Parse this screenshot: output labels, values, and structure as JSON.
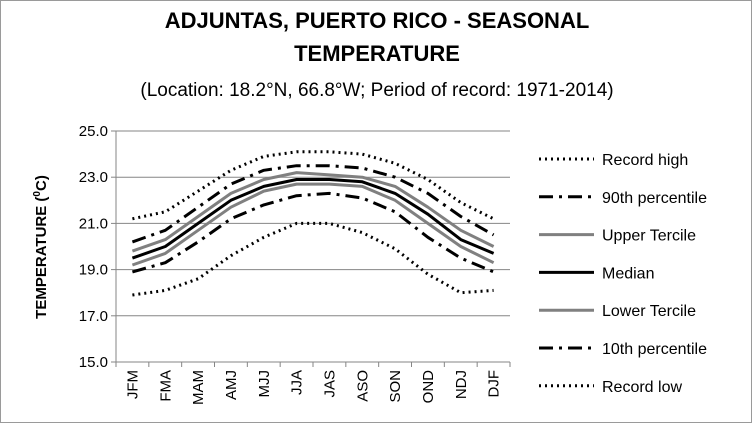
{
  "chart_data": {
    "type": "line",
    "title_line1": "ADJUNTAS, PUERTO RICO - SEASONAL",
    "title_line2": "TEMPERATURE",
    "subtitle": "(Location: 18.2°N, 66.8°W; Period of record: 1971-2014)",
    "ylabel": "TEMPERATURE (",
    "ylabel_sup": "0",
    "ylabel_unit": "C)",
    "xlabel": "",
    "ylim": [
      15.0,
      25.0
    ],
    "yticks": [
      "15.0",
      "17.0",
      "19.0",
      "21.0",
      "23.0",
      "25.0"
    ],
    "grid": true,
    "legend_position": "right",
    "categories": [
      "JFM",
      "FMA",
      "MAM",
      "AMJ",
      "MJJ",
      "JJA",
      "JAS",
      "ASO",
      "SON",
      "OND",
      "NDJ",
      "DJF"
    ],
    "series": [
      {
        "name": "Record high",
        "color": "#000000",
        "dash": "dot",
        "values": [
          21.2,
          21.5,
          22.4,
          23.3,
          23.9,
          24.1,
          24.1,
          24.0,
          23.6,
          22.9,
          21.9,
          21.2
        ]
      },
      {
        "name": "90th percentile",
        "color": "#000000",
        "dash": "dashdot",
        "values": [
          20.2,
          20.7,
          21.7,
          22.7,
          23.3,
          23.5,
          23.5,
          23.4,
          23.0,
          22.3,
          21.3,
          20.5
        ]
      },
      {
        "name": "Upper Tercile",
        "color": "#808080",
        "dash": "solid",
        "values": [
          19.8,
          20.3,
          21.3,
          22.3,
          22.9,
          23.2,
          23.1,
          23.0,
          22.6,
          21.7,
          20.7,
          20.0
        ]
      },
      {
        "name": "Median",
        "color": "#000000",
        "dash": "solid",
        "values": [
          19.5,
          20.0,
          21.0,
          22.0,
          22.6,
          22.9,
          22.9,
          22.8,
          22.3,
          21.4,
          20.3,
          19.7
        ]
      },
      {
        "name": "Lower Tercile",
        "color": "#808080",
        "dash": "solid",
        "values": [
          19.2,
          19.7,
          20.7,
          21.7,
          22.4,
          22.7,
          22.7,
          22.6,
          22.0,
          21.0,
          20.0,
          19.3
        ]
      },
      {
        "name": "10th percentile",
        "color": "#000000",
        "dash": "dashdot",
        "values": [
          18.9,
          19.3,
          20.2,
          21.2,
          21.8,
          22.2,
          22.3,
          22.1,
          21.5,
          20.4,
          19.5,
          18.9
        ]
      },
      {
        "name": "Record low",
        "color": "#000000",
        "dash": "dot",
        "values": [
          17.9,
          18.1,
          18.6,
          19.6,
          20.4,
          21.0,
          21.0,
          20.6,
          19.9,
          18.8,
          18.0,
          18.1
        ]
      }
    ]
  }
}
